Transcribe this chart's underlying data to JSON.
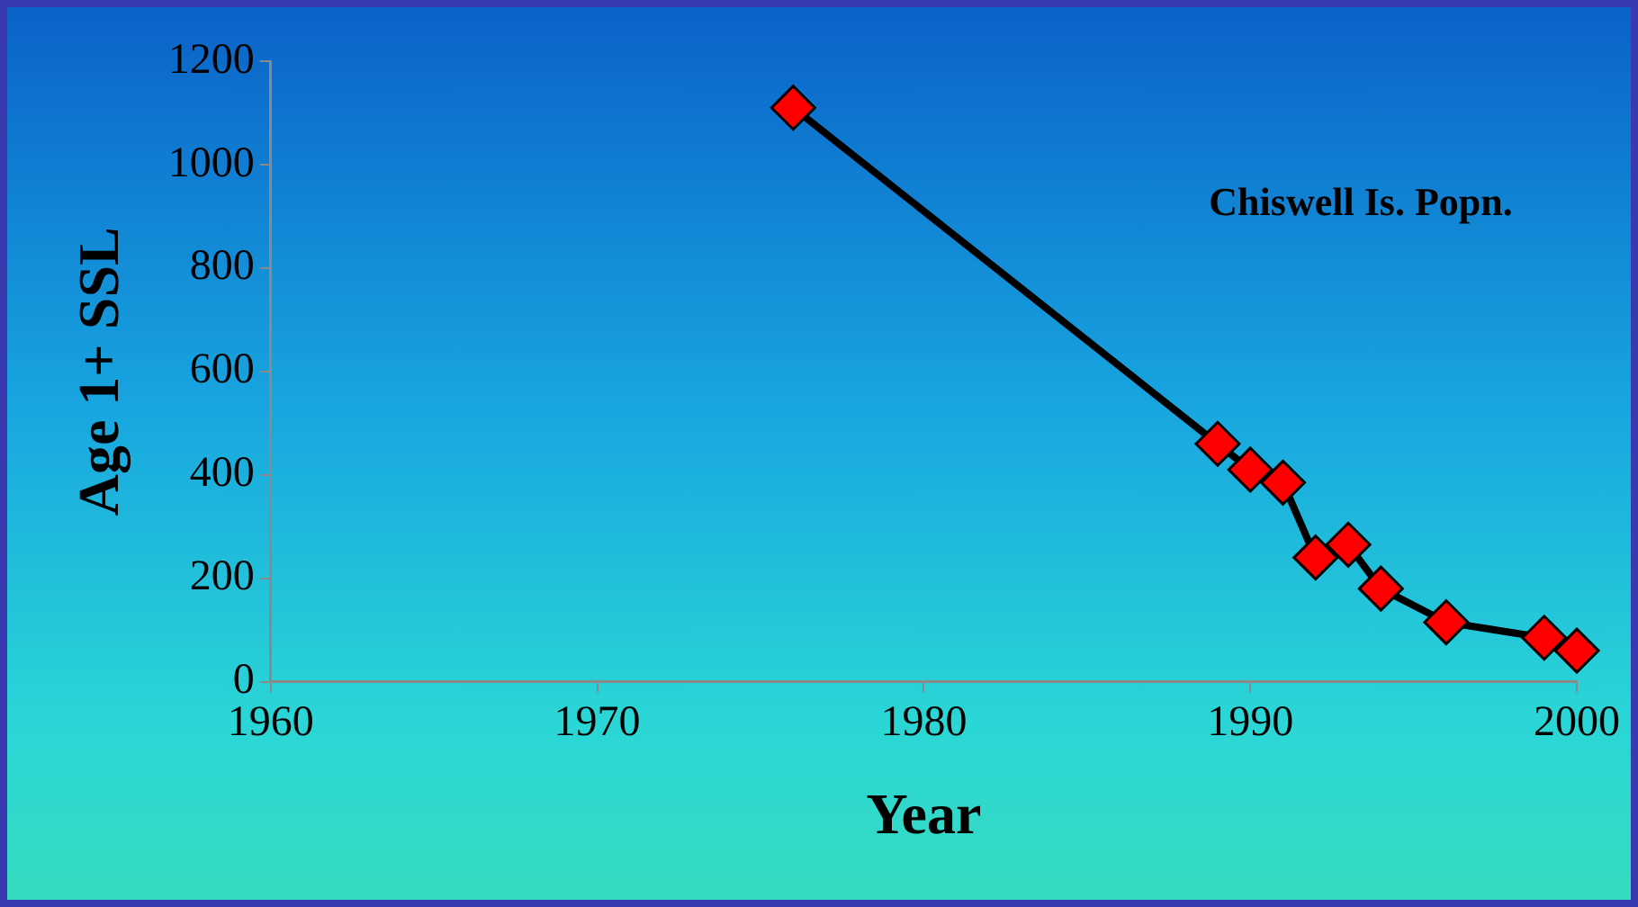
{
  "chart_data": {
    "type": "line",
    "xlabel": "Year",
    "ylabel": "Age 1+ SSL",
    "x": [
      1976,
      1989,
      1990,
      1991,
      1992,
      1993,
      1994,
      1996,
      1999,
      2000
    ],
    "series": [
      {
        "color": "#000000",
        "values": [
          1110,
          460,
          410,
          385,
          240,
          265,
          180,
          115,
          85,
          60
        ]
      }
    ],
    "xlim": [
      1960,
      2000
    ],
    "xticks": [
      1960,
      1970,
      1980,
      1990,
      2000
    ],
    "ylim": [
      0,
      1200
    ],
    "yticks": [
      0,
      200,
      400,
      600,
      800,
      1000,
      1200
    ],
    "grid": false,
    "legend": false,
    "marker": "diamond",
    "line_style": "solid",
    "annotations": [
      "Chiswell Is. Popn."
    ]
  }
}
